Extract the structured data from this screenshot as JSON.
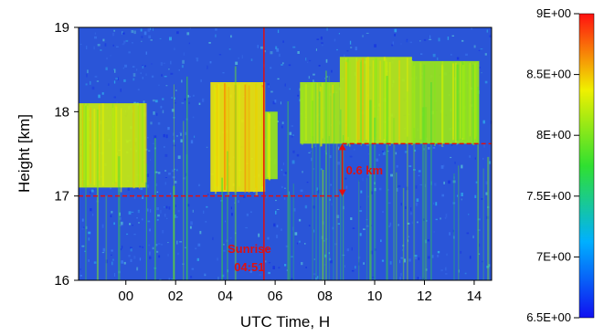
{
  "chart_data": {
    "type": "heatmap",
    "xlabel": "UTC Time, H",
    "ylabel": "Height [km]",
    "x_ticks": [
      {
        "value": 0,
        "label": "00"
      },
      {
        "value": 2,
        "label": "02"
      },
      {
        "value": 4,
        "label": "04"
      },
      {
        "value": 6,
        "label": "06"
      },
      {
        "value": 8,
        "label": "08"
      },
      {
        "value": 10,
        "label": "10"
      },
      {
        "value": 12,
        "label": "12"
      },
      {
        "value": 14,
        "label": "14"
      }
    ],
    "y_ticks": [
      {
        "value": 16,
        "label": "16"
      },
      {
        "value": 17,
        "label": "17"
      },
      {
        "value": 18,
        "label": "18"
      },
      {
        "value": 19,
        "label": "19"
      }
    ],
    "xlim": [
      -1.9,
      14.7
    ],
    "ylim": [
      16,
      19
    ],
    "colorbar": {
      "min": 6.5,
      "max": 9.0,
      "ticks": [
        {
          "value": 9.0,
          "label": "9E+00"
        },
        {
          "value": 8.5,
          "label": "8.5E+00"
        },
        {
          "value": 8.0,
          "label": "8E+00"
        },
        {
          "value": 7.5,
          "label": "7.5E+00"
        },
        {
          "value": 7.0,
          "label": "7E+00"
        },
        {
          "value": 6.5,
          "label": "6.5E+00"
        }
      ]
    },
    "layers": [
      {
        "x_start": -1.9,
        "x_end": 0.8,
        "bottom_km": 17.1,
        "top_km": 18.1,
        "intensity": 8.25
      },
      {
        "x_start": 3.4,
        "x_end": 5.6,
        "bottom_km": 17.05,
        "top_km": 18.35,
        "intensity": 8.4
      },
      {
        "x_start": 5.6,
        "x_end": 6.1,
        "bottom_km": 17.2,
        "top_km": 18.0,
        "intensity": 8.1
      },
      {
        "x_start": 7.0,
        "x_end": 8.6,
        "bottom_km": 17.62,
        "top_km": 18.35,
        "intensity": 8.15
      },
      {
        "x_start": 8.6,
        "x_end": 11.5,
        "bottom_km": 17.62,
        "top_km": 18.65,
        "intensity": 8.2
      },
      {
        "x_start": 11.5,
        "x_end": 14.2,
        "bottom_km": 17.62,
        "top_km": 18.6,
        "intensity": 8.1
      }
    ],
    "annotations": {
      "sunrise": {
        "x": 5.55,
        "label": "Sunrise",
        "time": "04:51"
      },
      "layer_base_low": {
        "y": 17.0,
        "x_start": -1.9,
        "x_end": 8.7
      },
      "layer_base_high": {
        "y": 17.62,
        "x_start": 8.7,
        "x_end": 14.7
      },
      "shift": {
        "x": 8.7,
        "y_from": 17.62,
        "y_to": 17.0,
        "label": "0.6 km"
      }
    },
    "colors": {
      "line": "#e01010"
    }
  }
}
